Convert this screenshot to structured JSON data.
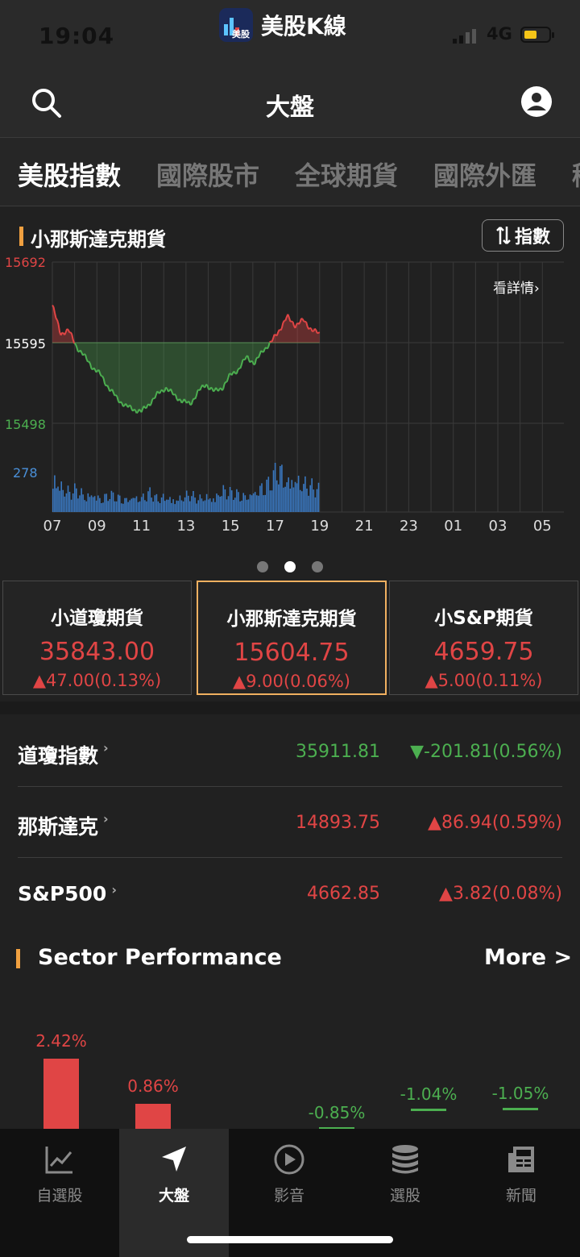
{
  "status": {
    "time": "19:04",
    "app_name": "美股K線",
    "app_icon_text": "美股",
    "network": "4G"
  },
  "header": {
    "title": "大盤"
  },
  "tabs": [
    "美股指數",
    "國際股市",
    "全球期貨",
    "國際外匯",
    "稀"
  ],
  "chart_card": {
    "title": "小那斯達克期貨",
    "toggle_label": "指數",
    "detail_link": "看詳情",
    "pager": {
      "count": 3,
      "active": 1
    }
  },
  "chart_data": {
    "type": "line",
    "title": "小那斯達克期貨",
    "y_ticks": [
      "15692",
      "15595",
      "15498"
    ],
    "volume_tick": "278",
    "ylim": [
      15498,
      15692
    ],
    "baseline": 15595,
    "x_ticks": [
      "07",
      "09",
      "11",
      "13",
      "15",
      "17",
      "19",
      "21",
      "23",
      "01",
      "03",
      "05"
    ],
    "series": [
      {
        "values": [
          15640,
          15606,
          15610,
          15590,
          15578,
          15565,
          15556,
          15540,
          15528,
          15519,
          15515,
          15512,
          15522,
          15533,
          15541,
          15532,
          15525,
          15521,
          15536,
          15545,
          15536,
          15541,
          15556,
          15563,
          15578,
          15570,
          15586,
          15595,
          15610,
          15626,
          15616,
          15622,
          15611,
          15605
        ]
      }
    ],
    "volume": [
      120,
      80,
      60,
      70,
      50,
      60,
      40,
      55,
      45,
      40,
      50,
      45,
      60,
      40,
      50,
      40,
      45,
      55,
      40,
      50,
      45,
      70,
      60,
      55,
      50,
      65,
      80,
      90,
      140,
      100,
      110,
      90,
      80,
      70
    ],
    "grid": true
  },
  "futures": [
    {
      "name": "小道瓊期貨",
      "price": "35843.00",
      "change": "▲47.00(0.13%)",
      "direction": "up",
      "selected": false
    },
    {
      "name": "小那斯達克期貨",
      "price": "15604.75",
      "change": "▲9.00(0.06%)",
      "direction": "up",
      "selected": true
    },
    {
      "name": "小S&P期貨",
      "price": "4659.75",
      "change": "▲5.00(0.11%)",
      "direction": "up",
      "selected": false
    }
  ],
  "indices": [
    {
      "name": "道瓊指數",
      "price": "35911.81",
      "change": "▼-201.81(0.56%)",
      "direction": "down"
    },
    {
      "name": "那斯達克",
      "price": "14893.75",
      "change": "▲86.94(0.59%)",
      "direction": "up"
    },
    {
      "name": "S&P500",
      "price": "4662.85",
      "change": "▲3.82(0.08%)",
      "direction": "up"
    }
  ],
  "sector": {
    "title": "Sector Performance",
    "more_label": "More >",
    "values": [
      {
        "label": "2.42%",
        "value": 2.42,
        "direction": "up"
      },
      {
        "label": "0.86%",
        "value": 0.86,
        "direction": "up"
      },
      {
        "label": "",
        "value": 0,
        "direction": "up"
      },
      {
        "label": "-0.85%",
        "value": -0.85,
        "direction": "down"
      },
      {
        "label": "-1.04%",
        "value": -1.04,
        "direction": "down"
      },
      {
        "label": "-1.05%",
        "value": -1.05,
        "direction": "down"
      }
    ]
  },
  "nav": [
    {
      "label": "自選股",
      "icon": "trend-chart-icon",
      "active": false
    },
    {
      "label": "大盤",
      "icon": "navigation-arrow-icon",
      "active": true
    },
    {
      "label": "影音",
      "icon": "play-circle-icon",
      "active": false
    },
    {
      "label": "選股",
      "icon": "database-icon",
      "active": false
    },
    {
      "label": "新聞",
      "icon": "newspaper-icon",
      "active": false
    }
  ],
  "colors": {
    "up": "#e04545",
    "down": "#4caf50",
    "accent": "#f0a040",
    "volume": "#3a78c0"
  }
}
